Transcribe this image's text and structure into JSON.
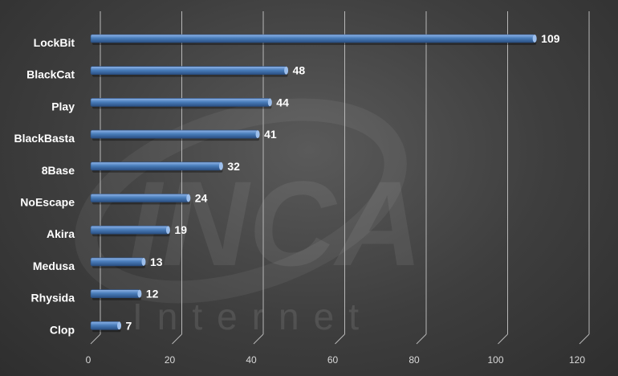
{
  "watermark": {
    "main": "INCA",
    "sub": "Internet"
  },
  "chart_data": {
    "type": "bar",
    "orientation": "horizontal",
    "categories": [
      "LockBit",
      "BlackCat",
      "Play",
      "BlackBasta",
      "8Base",
      "NoEscape",
      "Akira",
      "Medusa",
      "Rhysida",
      "Clop"
    ],
    "values": [
      109,
      48,
      44,
      41,
      32,
      24,
      19,
      13,
      12,
      7
    ],
    "x_ticks": [
      "0",
      "20",
      "40",
      "60",
      "80",
      "100",
      "120"
    ],
    "xlim": [
      0,
      120
    ],
    "grid": true,
    "bar_color": "#4a7ebb",
    "title": "",
    "xlabel": "",
    "ylabel": ""
  }
}
